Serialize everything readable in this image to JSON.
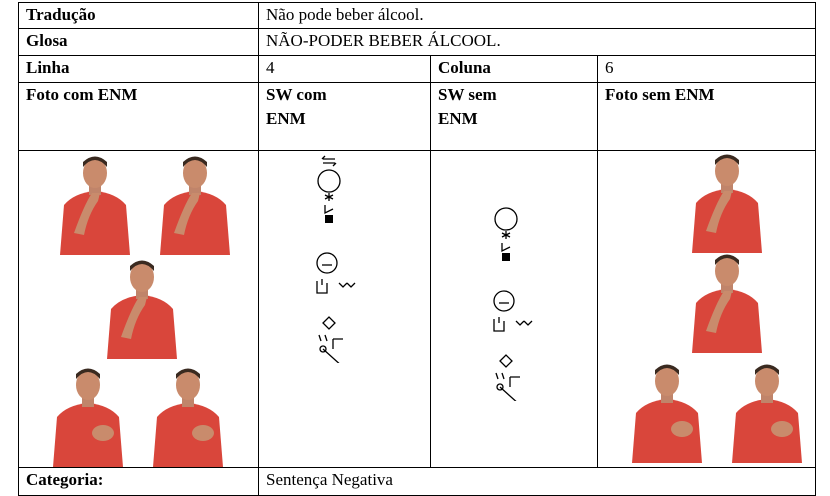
{
  "table": {
    "rows": [
      [
        "Tradução",
        "Não pode beber álcool."
      ],
      [
        "Glosa",
        "NÃO-PODER BEBER ÁLCOOL."
      ],
      [
        "Linha",
        4,
        "Coluna",
        6
      ],
      [
        "Foto com ENM",
        "SW com ENM",
        "SW sem ENM",
        "Foto sem ENM"
      ],
      [
        "Categoria:",
        "Sentença Negativa"
      ]
    ]
  }
}
